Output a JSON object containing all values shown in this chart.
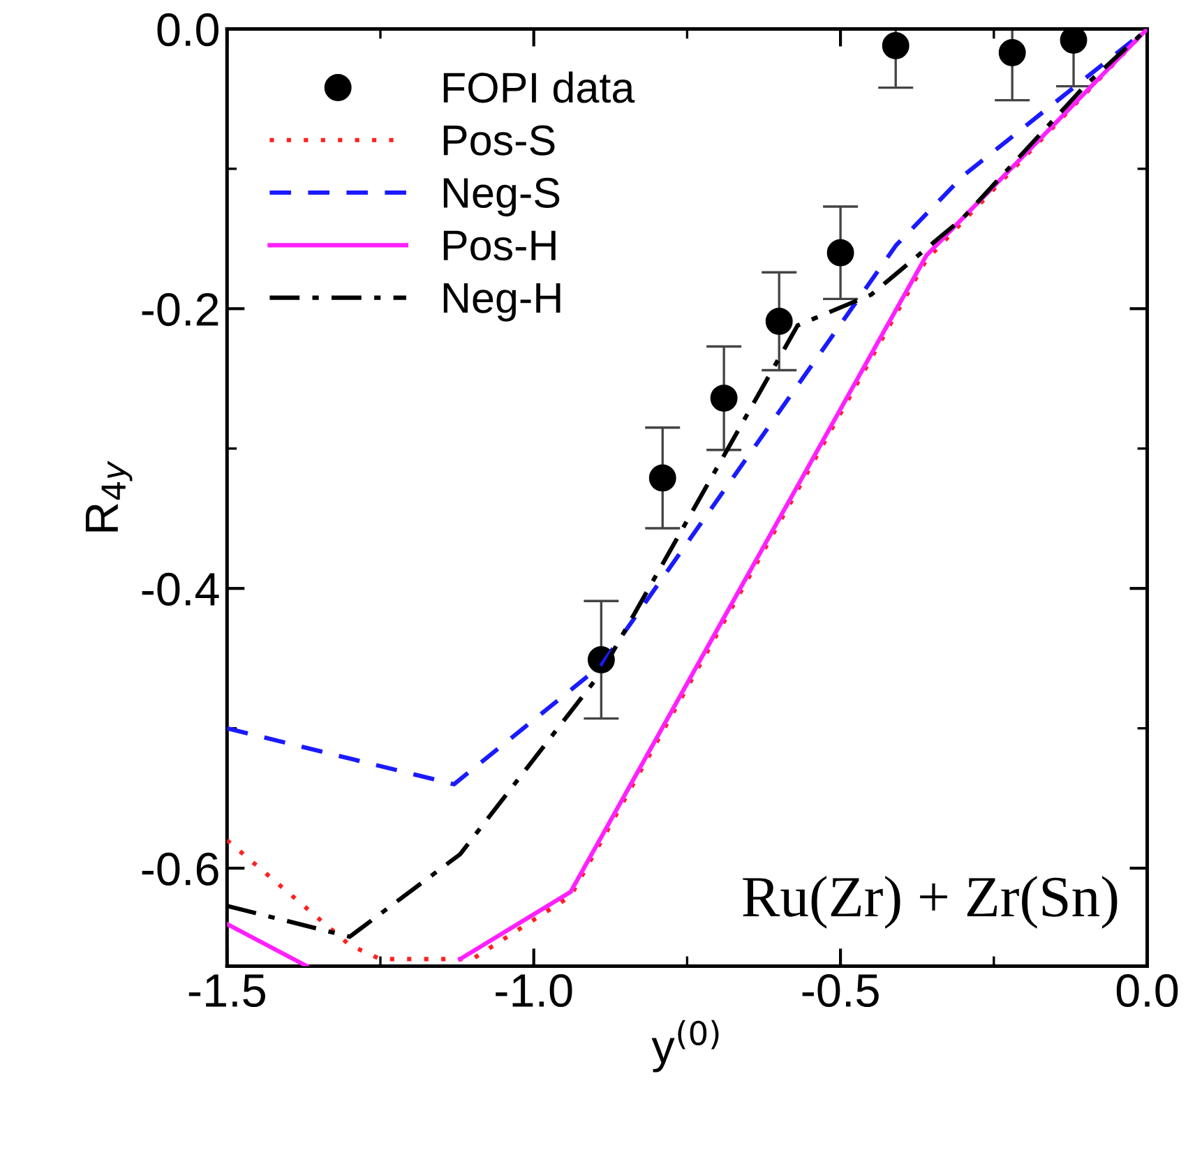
{
  "chart_data": {
    "type": "line",
    "xlabel": "y$^{(0)}$",
    "ylabel": "R$_{4y}$",
    "xlim": [
      -1.5,
      0.0
    ],
    "ylim": [
      -0.67,
      0.0
    ],
    "xticks": [
      -1.5,
      {
        "value": -1.0,
        "label": "-1.0"
      },
      -0.5,
      {
        "value": 0.0,
        "label": "0.0"
      }
    ],
    "yticks": [
      {
        "value": 0.0,
        "label": "0.0"
      },
      -0.2,
      -0.4,
      -0.6
    ],
    "legend": "top left",
    "grid": false,
    "annotations": [
      "Ru(Zr) + Zr(Sn)"
    ],
    "series": [
      {
        "name": "FOPI data",
        "type": "scatter",
        "marker": "circle",
        "color": "#000000",
        "x": [
          -0.89,
          -0.79,
          -0.69,
          -0.6,
          -0.5,
          -0.41,
          -0.22,
          -0.12
        ],
        "values": [
          -0.451,
          -0.321,
          -0.264,
          -0.209,
          -0.16,
          -0.012,
          -0.017,
          -0.008
        ],
        "errors": [
          0.042,
          0.036,
          0.037,
          0.035,
          0.033,
          [
            -0.042,
            0.0
          ],
          [
            -0.051,
            0.0
          ],
          [
            -0.041,
            0.0
          ]
        ]
      },
      {
        "name": "Pos-S",
        "line_style": "dotted",
        "color": "#ff2020",
        "x": [
          -1.5,
          -1.3,
          -1.25,
          -1.1,
          -0.94,
          -0.36,
          0.0
        ],
        "values": [
          -0.58,
          -0.655,
          -0.665,
          -0.665,
          -0.62,
          -0.165,
          0.0
        ]
      },
      {
        "name": "Neg-S",
        "line_style": "dashed",
        "color": "#1a1aff",
        "x": [
          -1.5,
          -1.13,
          -0.89,
          -0.41,
          -0.3,
          0.0
        ],
        "values": [
          -0.5,
          -0.54,
          -0.455,
          -0.155,
          -0.105,
          0.0
        ]
      },
      {
        "name": "Pos-H",
        "line_style": "solid",
        "color": "#ff20ff",
        "x": [
          -1.5,
          -1.37,
          -1.25,
          -1.12,
          -0.94,
          -0.36,
          0.0
        ],
        "values": [
          -0.64,
          -0.67,
          null,
          -0.665,
          -0.617,
          -0.162,
          0.0
        ]
      },
      {
        "name": "Neg-H",
        "line_style": "dashdot",
        "color": "#000000",
        "x": [
          -1.5,
          -1.3,
          -1.12,
          -0.89,
          -0.57,
          -0.45,
          -0.3,
          -0.1,
          0.0
        ],
        "values": [
          -0.627,
          -0.649,
          -0.59,
          -0.46,
          -0.212,
          -0.19,
          -0.135,
          -0.04,
          0.0
        ]
      }
    ]
  }
}
